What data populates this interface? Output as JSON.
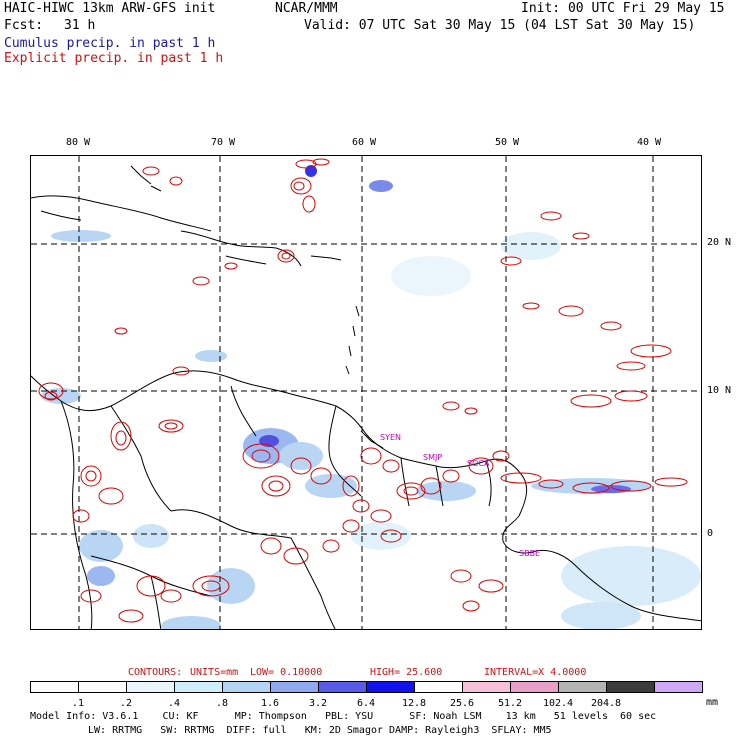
{
  "header": {
    "title": "HAIC-HIWC 13km ARW-GFS init",
    "center": "NCAR/MMM",
    "init": "Init: 00 UTC Fri 29 May 15",
    "fcst_label": "Fcst:",
    "fcst_value": "31 h",
    "valid": "Valid: 07 UTC Sat 30 May 15 (04 LST Sat 30 May 15)",
    "cumulus_legend": "Cumulus precip. in past 1 h",
    "explicit_legend": "Explicit precip. in past 1 h"
  },
  "map": {
    "lon_labels": [
      "80 W",
      "70 W",
      "60 W",
      "50 W",
      "40 W"
    ],
    "lat_labels": [
      "20 N",
      "10 N",
      "0"
    ],
    "stations": [
      "SYEN",
      "SMJP",
      "SOCA",
      "SBBE"
    ]
  },
  "contours": {
    "label": "CONTOURS:",
    "units": "UNITS=mm",
    "low": "LOW= 0.10000",
    "high": "HIGH= 25.600",
    "interval": "INTERVAL=X 4.0000"
  },
  "colorbar": {
    "unit": "mm",
    "labels": [
      ".1",
      ".2",
      ".4",
      ".8",
      "1.6",
      "3.2",
      "6.4",
      "12.8",
      "25.6",
      "51.2",
      "102.4",
      "204.8"
    ],
    "colors": [
      "#ffffff",
      "#ffffff",
      "#eaf6fb",
      "#cdeefa",
      "#b4d4f5",
      "#90a8f0",
      "#5a5ae8",
      "#1212ee",
      "#ffffff",
      "#f6c0d8",
      "#e8a0c8",
      "#b4b4b4",
      "#3c3c3c",
      "#d0a8f8"
    ]
  },
  "footer": {
    "line1": "Model Info: V3.6.1    CU: KF      MP: Thompson   PBL: YSU      SF: Noah LSM    13 km   51 levels  60 sec",
    "line2": "LW: RRTMG   SW: RRTMG  DIFF: full   KM: 2D Smagor DAMP: Rayleigh3  SFLAY: MM5"
  }
}
